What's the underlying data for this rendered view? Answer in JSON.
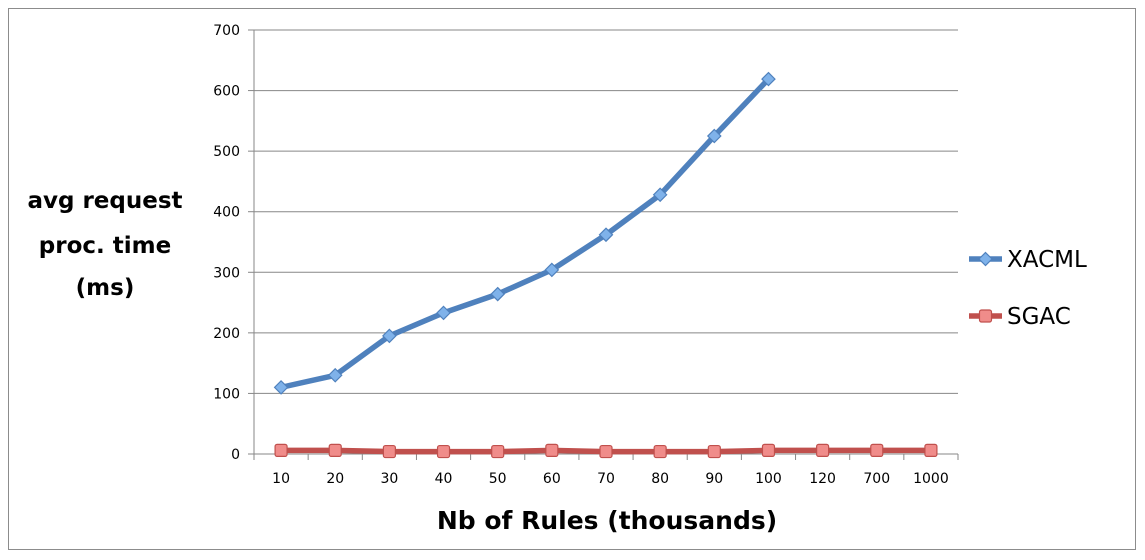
{
  "chart_data": {
    "type": "line",
    "title": "",
    "xlabel": "Nb of Rules (thousands)",
    "ylabel_lines": [
      "avg request",
      "proc. time",
      "(ms)"
    ],
    "categories": [
      "10",
      "20",
      "30",
      "40",
      "50",
      "60",
      "70",
      "80",
      "90",
      "100",
      "120",
      "700",
      "1000"
    ],
    "ylim": [
      0,
      700
    ],
    "yticks": [
      "0",
      "100",
      "200",
      "300",
      "400",
      "500",
      "600",
      "700"
    ],
    "grid": true,
    "legend_position": "right",
    "series": [
      {
        "name": "XACML",
        "color": "#4f81bd",
        "marker_color": "#7fb2ea",
        "marker": "diamond",
        "values": [
          110,
          130,
          195,
          233,
          264,
          304,
          362,
          428,
          525,
          619,
          null,
          null,
          null
        ]
      },
      {
        "name": "SGAC",
        "color": "#c0504d",
        "marker_color": "#f08c8a",
        "marker": "square",
        "values": [
          6,
          6,
          4,
          4,
          4,
          6,
          4,
          4,
          4,
          6,
          6,
          6,
          6
        ]
      }
    ]
  }
}
